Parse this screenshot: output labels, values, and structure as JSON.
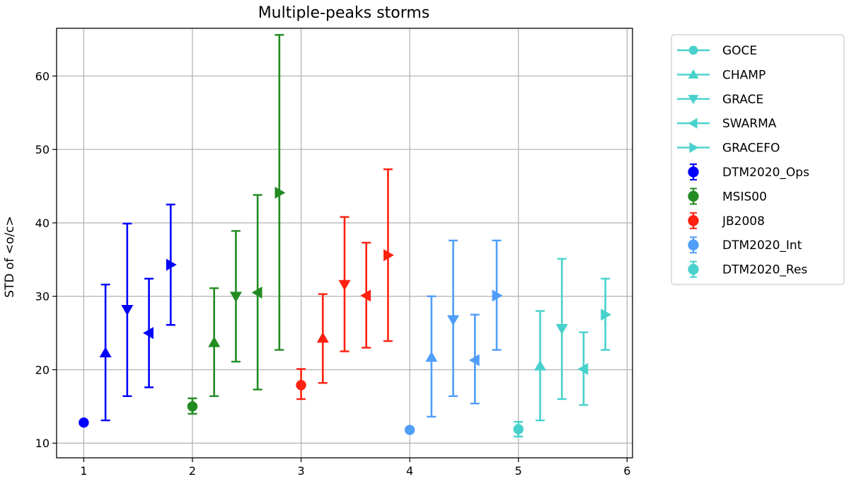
{
  "chart_data": {
    "type": "scatter",
    "title": "Multiple-peaks storms",
    "xlabel": "",
    "ylabel": "STD of <o/c>",
    "xlim": [
      0.75,
      6.05
    ],
    "ylim": [
      8,
      66.5
    ],
    "x_ticks": [
      1,
      2,
      3,
      4,
      5,
      6
    ],
    "y_ticks": [
      10,
      20,
      30,
      40,
      50,
      60
    ],
    "grid": true,
    "legend_position": "outside-right",
    "marker_legend": [
      {
        "name": "GOCE",
        "marker": "circle"
      },
      {
        "name": "CHAMP",
        "marker": "triangle-up"
      },
      {
        "name": "GRACE",
        "marker": "triangle-down"
      },
      {
        "name": "SWARMA",
        "marker": "triangle-left"
      },
      {
        "name": "GRACEFO",
        "marker": "triangle-right"
      }
    ],
    "marker_legend_color": "#48d1cc",
    "series": [
      {
        "name": "DTM2020_Ops",
        "color": "#0000ff",
        "points": [
          {
            "x": 1.0,
            "y": 12.8,
            "lower": 12.8,
            "upper": 12.8,
            "marker": "circle"
          },
          {
            "x": 1.2,
            "y": 22.3,
            "lower": 13.1,
            "upper": 31.6,
            "marker": "triangle-up"
          },
          {
            "x": 1.4,
            "y": 28.2,
            "lower": 16.4,
            "upper": 39.9,
            "marker": "triangle-down"
          },
          {
            "x": 1.6,
            "y": 25.0,
            "lower": 17.6,
            "upper": 32.4,
            "marker": "triangle-left"
          },
          {
            "x": 1.8,
            "y": 34.3,
            "lower": 26.1,
            "upper": 42.5,
            "marker": "triangle-right"
          }
        ]
      },
      {
        "name": "MSIS00",
        "color": "#228b22",
        "points": [
          {
            "x": 2.0,
            "y": 15.0,
            "lower": 14.0,
            "upper": 16.1,
            "marker": "circle"
          },
          {
            "x": 2.2,
            "y": 23.7,
            "lower": 16.4,
            "upper": 31.1,
            "marker": "triangle-up"
          },
          {
            "x": 2.4,
            "y": 30.0,
            "lower": 21.1,
            "upper": 38.9,
            "marker": "triangle-down"
          },
          {
            "x": 2.6,
            "y": 30.5,
            "lower": 17.3,
            "upper": 43.8,
            "marker": "triangle-left"
          },
          {
            "x": 2.8,
            "y": 44.1,
            "lower": 22.7,
            "upper": 65.6,
            "marker": "triangle-right"
          }
        ]
      },
      {
        "name": "JB2008",
        "color": "#ff2010",
        "points": [
          {
            "x": 3.0,
            "y": 17.9,
            "lower": 16.0,
            "upper": 20.1,
            "marker": "circle"
          },
          {
            "x": 3.2,
            "y": 24.3,
            "lower": 18.2,
            "upper": 30.3,
            "marker": "triangle-up"
          },
          {
            "x": 3.4,
            "y": 31.6,
            "lower": 22.5,
            "upper": 40.8,
            "marker": "triangle-down"
          },
          {
            "x": 3.6,
            "y": 30.1,
            "lower": 23.0,
            "upper": 37.3,
            "marker": "triangle-left"
          },
          {
            "x": 3.8,
            "y": 35.6,
            "lower": 23.9,
            "upper": 47.3,
            "marker": "triangle-right"
          }
        ]
      },
      {
        "name": "DTM2020_Int",
        "color": "#4f9efa",
        "points": [
          {
            "x": 4.0,
            "y": 11.8,
            "lower": 11.8,
            "upper": 11.8,
            "marker": "circle"
          },
          {
            "x": 4.2,
            "y": 21.7,
            "lower": 13.6,
            "upper": 30.0,
            "marker": "triangle-up"
          },
          {
            "x": 4.4,
            "y": 26.8,
            "lower": 16.4,
            "upper": 37.6,
            "marker": "triangle-down"
          },
          {
            "x": 4.6,
            "y": 21.3,
            "lower": 15.4,
            "upper": 27.5,
            "marker": "triangle-left"
          },
          {
            "x": 4.8,
            "y": 30.1,
            "lower": 22.7,
            "upper": 37.6,
            "marker": "triangle-right"
          }
        ]
      },
      {
        "name": "DTM2020_Res",
        "color": "#48d1cc",
        "points": [
          {
            "x": 5.0,
            "y": 11.9,
            "lower": 10.9,
            "upper": 12.9,
            "marker": "circle"
          },
          {
            "x": 5.2,
            "y": 20.5,
            "lower": 13.1,
            "upper": 28.0,
            "marker": "triangle-up"
          },
          {
            "x": 5.4,
            "y": 25.6,
            "lower": 16.0,
            "upper": 35.1,
            "marker": "triangle-down"
          },
          {
            "x": 5.6,
            "y": 20.1,
            "lower": 15.2,
            "upper": 25.1,
            "marker": "triangle-left"
          },
          {
            "x": 5.8,
            "y": 27.5,
            "lower": 22.7,
            "upper": 32.4,
            "marker": "triangle-right"
          }
        ]
      }
    ]
  }
}
